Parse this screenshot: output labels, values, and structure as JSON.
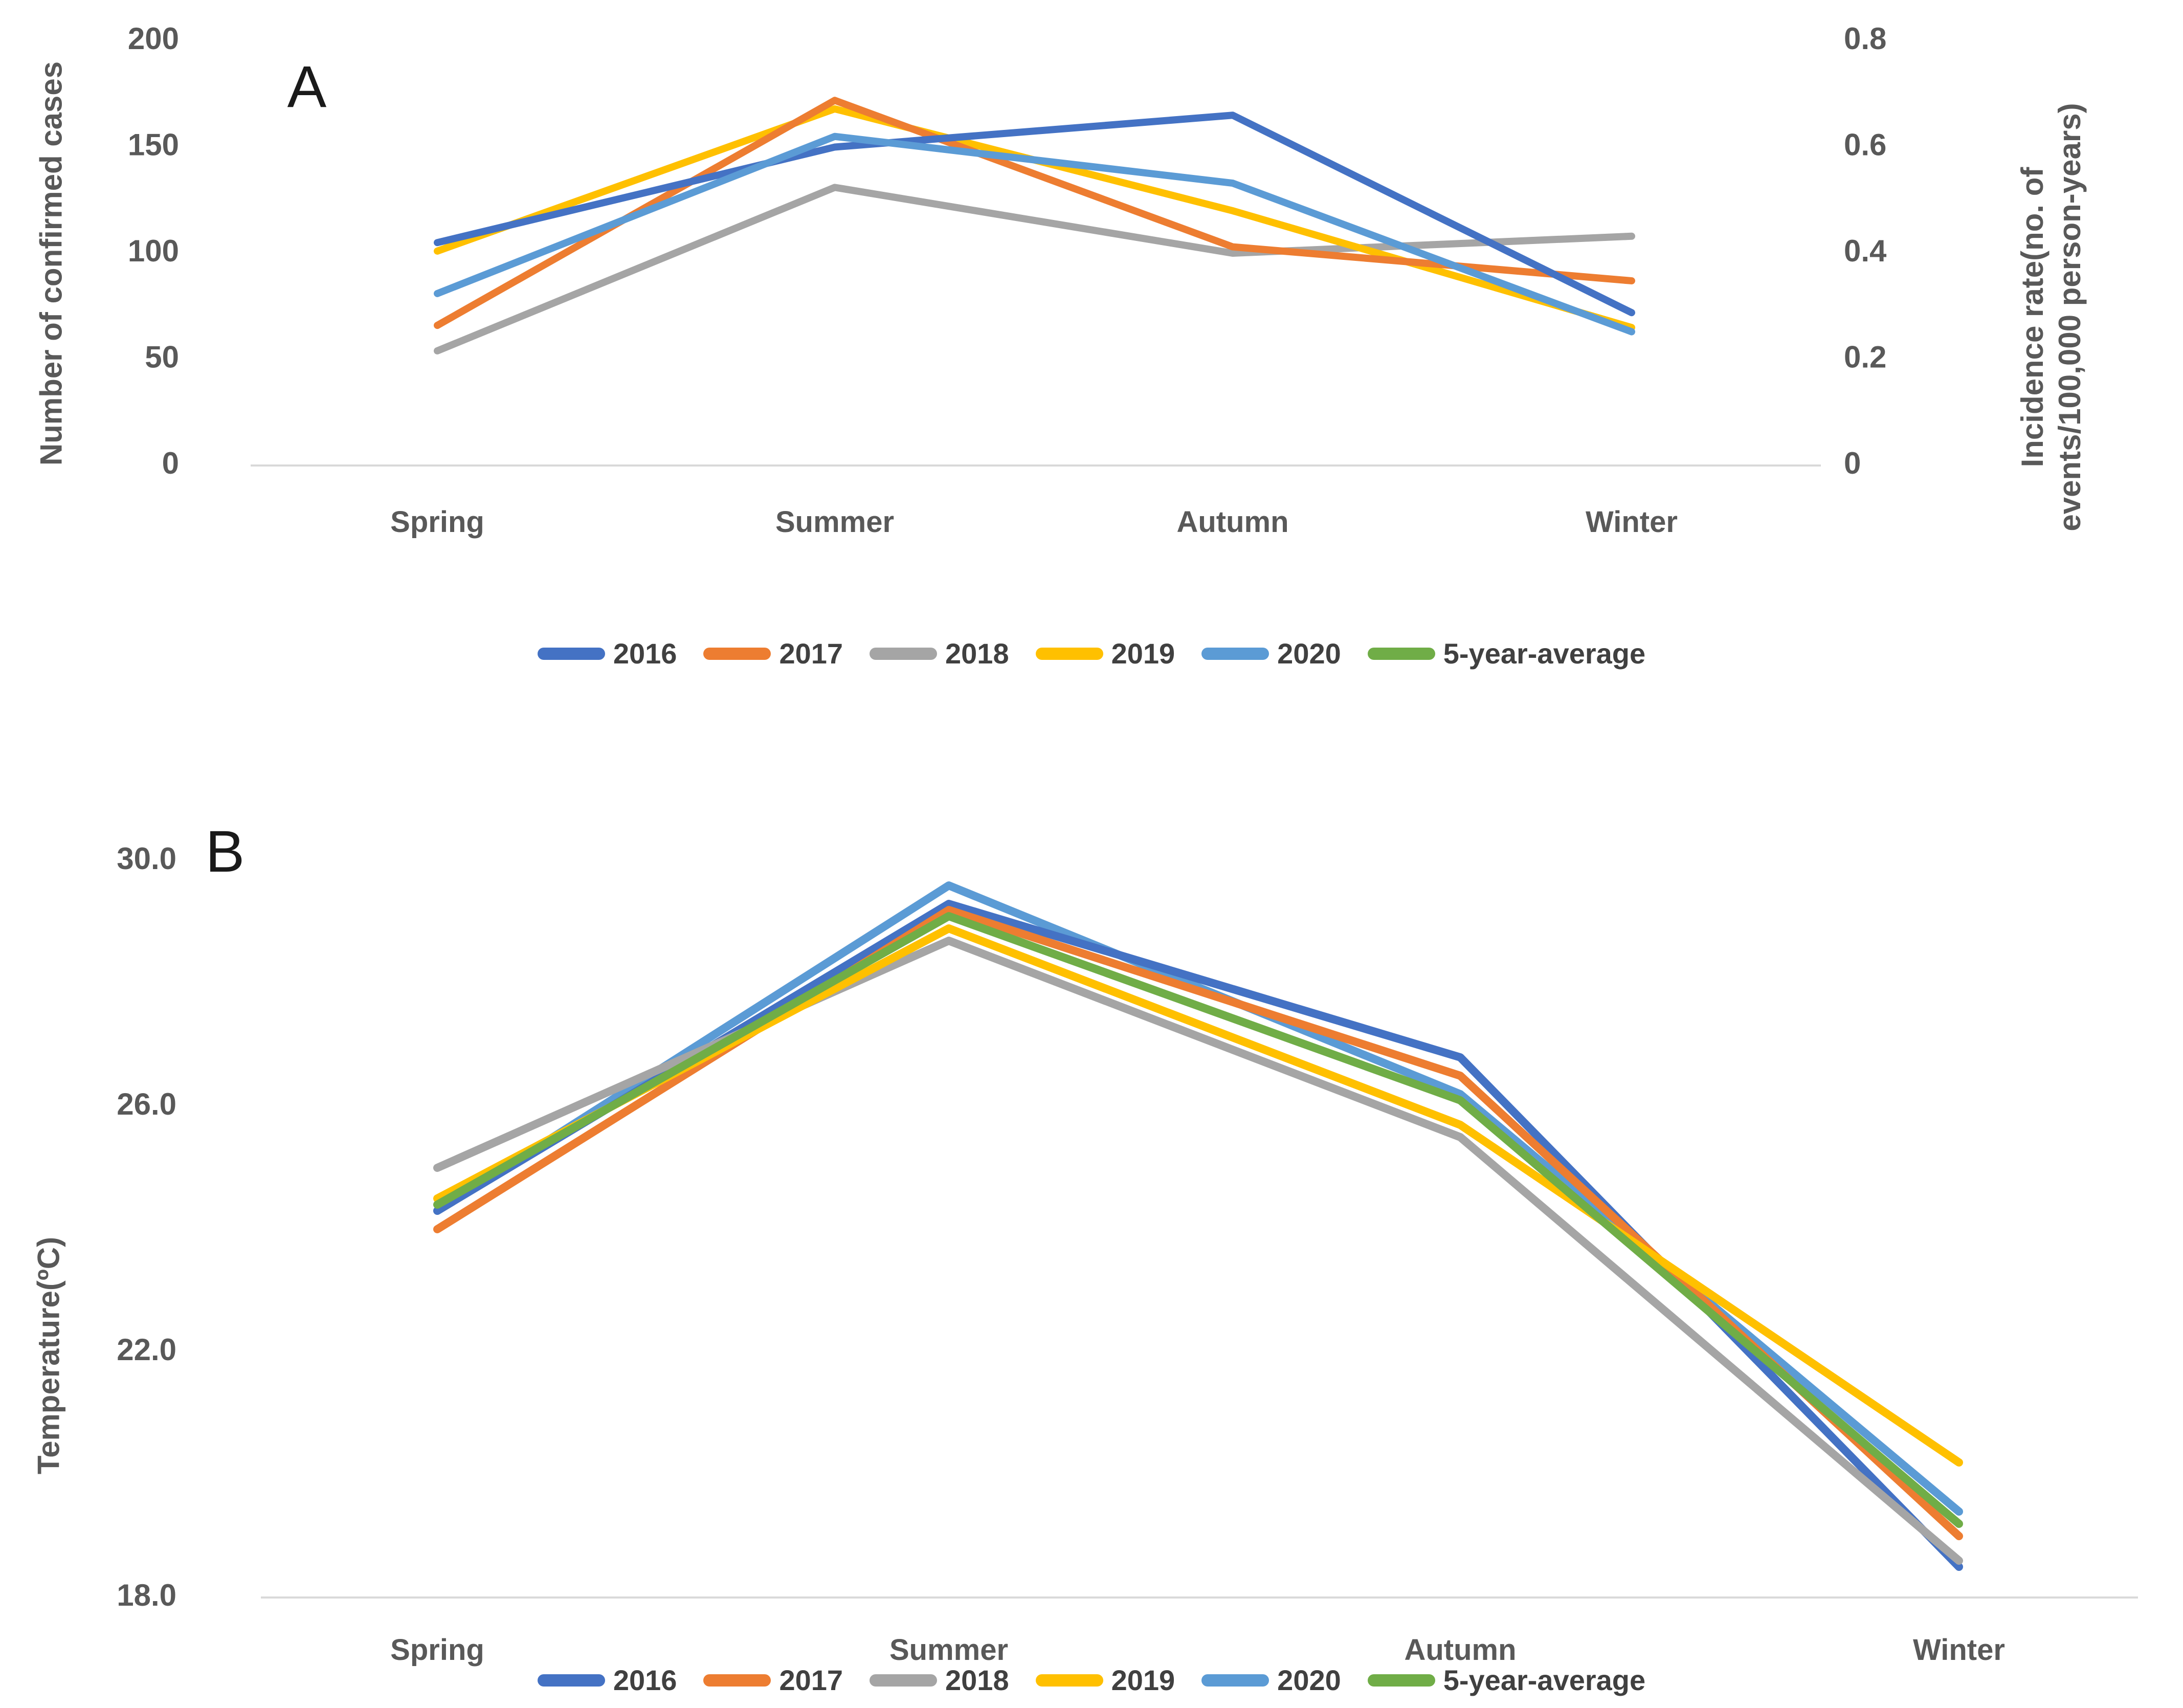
{
  "figure": {
    "background": "#ffffff",
    "text_color": "#595959",
    "axis_line_color": "#d9d9d9"
  },
  "panels": [
    {
      "label": "A"
    },
    {
      "label": "B"
    }
  ],
  "chart_data": [
    {
      "type": "line",
      "panel": "A",
      "categories": [
        "Spring",
        "Summer",
        "Autumn",
        "Winter"
      ],
      "series": [
        {
          "name": "2016",
          "color": "#4472C4",
          "values": [
            105,
            150,
            165,
            72
          ]
        },
        {
          "name": "2017",
          "color": "#ED7D31",
          "values": [
            66,
            172,
            103,
            87
          ]
        },
        {
          "name": "2018",
          "color": "#A5A5A5",
          "values": [
            54,
            131,
            100,
            108
          ]
        },
        {
          "name": "2019",
          "color": "#FFC000",
          "values": [
            101,
            168,
            120,
            65
          ]
        },
        {
          "name": "2020",
          "color": "#5B9BD5",
          "values": [
            81,
            155,
            133,
            63
          ]
        },
        {
          "name": "5-year-average",
          "color": "#70AD47",
          "values": [],
          "note": "legend entry only; line not visible in panel A"
        }
      ],
      "y_left": {
        "label": "Number of confirmed cases",
        "tick_values": [
          0,
          50,
          100,
          150,
          200
        ],
        "tick_labels": [
          "0",
          "50",
          "100",
          "150",
          "200"
        ],
        "range": [
          0,
          200
        ]
      },
      "y_right": {
        "label": "Incidence rate(no. of events/100,000 person-years)",
        "label_lines": [
          "Incidence rate(no. of",
          "events/100,000 person-years)"
        ],
        "tick_values": [
          0,
          0.2,
          0.4,
          0.6,
          0.8
        ],
        "tick_labels": [
          "0",
          "0.2",
          "0.4",
          "0.6",
          "0.8"
        ],
        "range": [
          0,
          0.8
        ]
      },
      "legend_position": "bottom",
      "grid": false,
      "draw_order": [
        "2018",
        "2019",
        "2017",
        "2016",
        "2020"
      ]
    },
    {
      "type": "line",
      "panel": "B",
      "categories": [
        "Spring",
        "Summer",
        "Autumn",
        "Winter"
      ],
      "series": [
        {
          "name": "2016",
          "color": "#4472C4",
          "values": [
            24.3,
            29.3,
            26.8,
            18.5
          ]
        },
        {
          "name": "2017",
          "color": "#ED7D31",
          "values": [
            24.0,
            29.2,
            26.5,
            19.0
          ]
        },
        {
          "name": "2018",
          "color": "#A5A5A5",
          "values": [
            25.0,
            28.7,
            25.5,
            18.6
          ]
        },
        {
          "name": "2019",
          "color": "#FFC000",
          "values": [
            24.5,
            28.9,
            25.7,
            20.2
          ]
        },
        {
          "name": "2020",
          "color": "#5B9BD5",
          "values": [
            24.3,
            29.6,
            26.2,
            19.4
          ]
        },
        {
          "name": "5-year-average",
          "color": "#70AD47",
          "values": [
            24.4,
            29.1,
            26.1,
            19.2
          ]
        }
      ],
      "ylabel": "Temperature(ºC)",
      "y_left": {
        "label": "Temperature(ºC)",
        "tick_values": [
          18,
          22,
          26,
          30
        ],
        "tick_labels": [
          "18.0",
          "22.0",
          "26.0",
          "30.0"
        ],
        "range": [
          18,
          30
        ]
      },
      "legend_position": "bottom",
      "grid": false,
      "draw_order": [
        "2020",
        "2016",
        "2017",
        "2018",
        "2019",
        "5-year-average"
      ]
    }
  ]
}
